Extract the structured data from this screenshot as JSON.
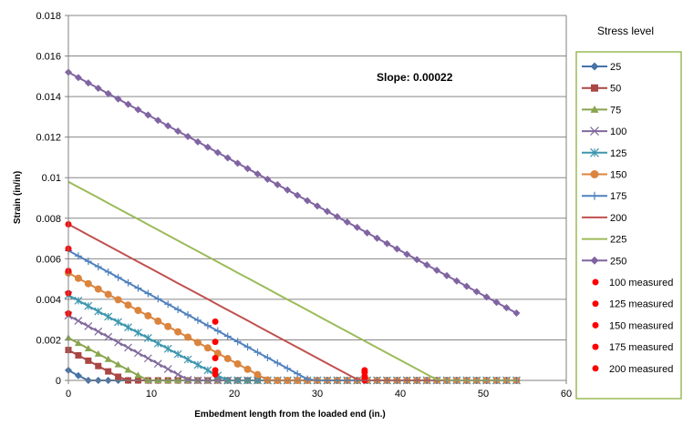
{
  "chart_data": {
    "type": "line",
    "title": "",
    "xlabel": "Embedment length from the loaded  end  (in.)",
    "ylabel": "Strain  (in/in)",
    "xlim": [
      0,
      60
    ],
    "ylim": [
      0,
      0.018
    ],
    "x_ticks": [
      "0",
      "10",
      "20",
      "30",
      "40",
      "50",
      "60"
    ],
    "y_ticks": [
      "0",
      "0.002",
      "0.004",
      "0.006",
      "0.008",
      "0.01",
      "0.012",
      "0.014",
      "0.016",
      "0.018"
    ],
    "grid": "horizontal",
    "legend_title": "Stress level",
    "legend_position": "right",
    "annotation": "Slope: 0.00022",
    "slope": 0.00022,
    "x_max": 54,
    "x_step": 1.2,
    "series": [
      {
        "name": "25",
        "start": 0.0005,
        "color": "#4572A7",
        "marker": "diamond"
      },
      {
        "name": "50",
        "start": 0.0015,
        "color": "#AA4643",
        "marker": "square"
      },
      {
        "name": "75",
        "start": 0.0021,
        "color": "#89A54E",
        "marker": "triangle"
      },
      {
        "name": "100",
        "start": 0.0032,
        "color": "#80699B",
        "marker": "x"
      },
      {
        "name": "125",
        "start": 0.0042,
        "color": "#3D96AE",
        "marker": "asterisk"
      },
      {
        "name": "150",
        "start": 0.0053,
        "color": "#DB843D",
        "marker": "circle"
      },
      {
        "name": "175",
        "start": 0.0064,
        "color": "#4F81BD",
        "marker": "plus"
      },
      {
        "name": "200",
        "start": 0.0077,
        "color": "#C0504D",
        "marker": "none"
      },
      {
        "name": "225",
        "start": 0.0098,
        "color": "#9BBB59",
        "marker": "none"
      },
      {
        "name": "250",
        "start": 0.0152,
        "color": "#8064A2",
        "marker": "diamond"
      }
    ],
    "measured_color": "#FF0000",
    "measured": [
      {
        "name": "100 measured",
        "points": [
          [
            0,
            0.0033
          ],
          [
            17.7,
            0.0003
          ],
          [
            35.7,
            0.0
          ]
        ]
      },
      {
        "name": "125 measured",
        "points": [
          [
            0,
            0.0043
          ],
          [
            17.7,
            0.0005
          ],
          [
            35.7,
            0.0001
          ]
        ]
      },
      {
        "name": "150 measured",
        "points": [
          [
            0,
            0.0054
          ],
          [
            17.7,
            0.0011
          ],
          [
            35.7,
            0.0002
          ]
        ]
      },
      {
        "name": "175 measured",
        "points": [
          [
            0,
            0.0065
          ],
          [
            17.7,
            0.0019
          ],
          [
            35.7,
            0.0004
          ]
        ]
      },
      {
        "name": "200 measured",
        "points": [
          [
            0,
            0.0077
          ],
          [
            17.7,
            0.0029
          ],
          [
            35.7,
            0.0005
          ]
        ]
      }
    ]
  }
}
